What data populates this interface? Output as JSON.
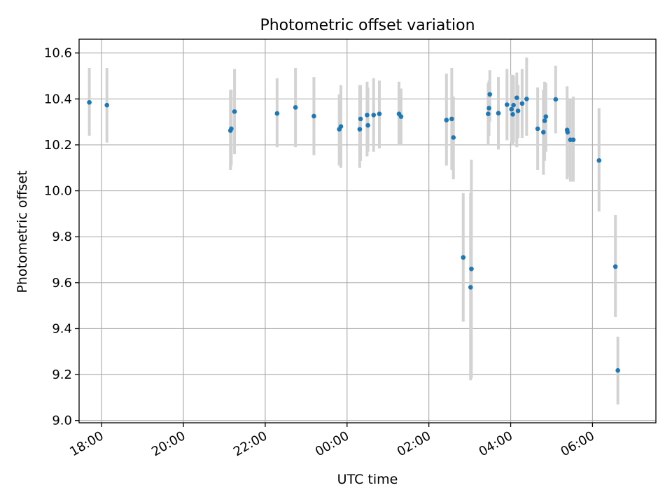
{
  "chart_data": {
    "type": "scatter",
    "title": "Photometric offset variation",
    "xlabel": "UTC time",
    "ylabel": "Photometric offset",
    "xlim_hours": [
      17.45,
      31.55
    ],
    "ylim": [
      8.99,
      10.66
    ],
    "x_ticks": [
      {
        "hour": 18,
        "label": "18:00"
      },
      {
        "hour": 20,
        "label": "20:00"
      },
      {
        "hour": 22,
        "label": "22:00"
      },
      {
        "hour": 24,
        "label": "00:00"
      },
      {
        "hour": 26,
        "label": "02:00"
      },
      {
        "hour": 28,
        "label": "04:00"
      },
      {
        "hour": 30,
        "label": "06:00"
      }
    ],
    "y_ticks": [
      {
        "value": 9.0,
        "label": "9.0"
      },
      {
        "value": 9.2,
        "label": "9.2"
      },
      {
        "value": 9.4,
        "label": "9.4"
      },
      {
        "value": 9.6,
        "label": "9.6"
      },
      {
        "value": 9.8,
        "label": "9.8"
      },
      {
        "value": 10.0,
        "label": "10.0"
      },
      {
        "value": 10.2,
        "label": "10.2"
      },
      {
        "value": 10.4,
        "label": "10.4"
      },
      {
        "value": 10.6,
        "label": "10.6"
      }
    ],
    "grid": true,
    "point_color": "#1f77b4",
    "errorbar_color": "#d3d3d3",
    "x_hours": [
      17.7,
      18.13,
      21.15,
      21.17,
      21.25,
      22.29,
      22.74,
      23.19,
      23.81,
      23.85,
      24.31,
      24.33,
      24.49,
      24.51,
      24.65,
      24.79,
      25.27,
      25.32,
      26.43,
      26.56,
      26.6,
      26.84,
      27.02,
      27.04,
      27.45,
      27.47,
      27.49,
      27.7,
      27.91,
      28.02,
      28.05,
      28.07,
      28.15,
      28.18,
      28.28,
      28.39,
      28.66,
      28.8,
      28.83,
      28.86,
      29.1,
      29.38,
      29.39,
      29.46,
      29.53,
      30.16,
      30.56,
      30.62
    ],
    "y": [
      10.385,
      10.373,
      10.262,
      10.27,
      10.345,
      10.337,
      10.363,
      10.325,
      10.268,
      10.28,
      10.268,
      10.313,
      10.33,
      10.285,
      10.33,
      10.335,
      10.335,
      10.323,
      10.308,
      10.313,
      10.232,
      9.71,
      9.58,
      9.66,
      10.335,
      10.36,
      10.42,
      10.338,
      10.375,
      10.355,
      10.333,
      10.373,
      10.405,
      10.348,
      10.38,
      10.4,
      10.27,
      10.255,
      10.305,
      10.323,
      10.398,
      10.265,
      10.255,
      10.222,
      10.222,
      10.132,
      9.67,
      9.218
    ],
    "y_err_low": [
      10.24,
      10.21,
      10.09,
      10.11,
      10.16,
      10.19,
      10.19,
      10.155,
      10.11,
      10.1,
      10.1,
      10.13,
      10.15,
      10.17,
      10.17,
      10.185,
      10.2,
      10.2,
      10.11,
      10.09,
      10.05,
      9.43,
      9.175,
      9.185,
      10.2,
      10.24,
      10.3,
      10.18,
      10.22,
      10.21,
      10.2,
      10.21,
      10.19,
      10.23,
      10.23,
      10.24,
      10.09,
      10.07,
      10.13,
      10.17,
      10.25,
      10.05,
      10.06,
      10.04,
      10.04,
      9.91,
      9.45,
      9.07
    ],
    "y_err_high": [
      10.535,
      10.535,
      10.44,
      10.44,
      10.53,
      10.49,
      10.535,
      10.495,
      10.42,
      10.46,
      10.46,
      10.46,
      10.475,
      10.45,
      10.49,
      10.48,
      10.475,
      10.445,
      10.51,
      10.535,
      10.41,
      9.99,
      9.99,
      10.135,
      10.47,
      10.48,
      10.525,
      10.495,
      10.53,
      10.505,
      10.505,
      10.5,
      10.515,
      10.46,
      10.53,
      10.58,
      10.45,
      10.44,
      10.475,
      10.47,
      10.545,
      10.455,
      10.4,
      10.4,
      10.41,
      10.36,
      9.895,
      9.365
    ]
  }
}
